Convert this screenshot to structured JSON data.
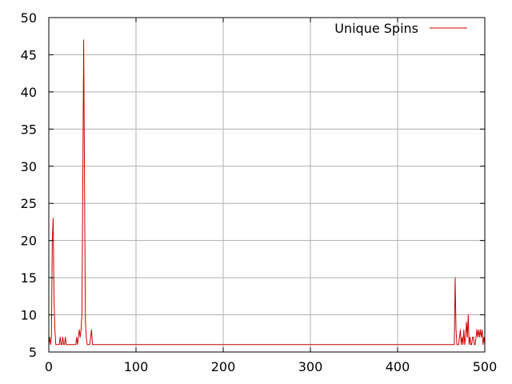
{
  "chart_data": {
    "type": "line",
    "title": "",
    "xlabel": "",
    "ylabel": "",
    "xlim": [
      0,
      500
    ],
    "ylim": [
      5,
      50
    ],
    "xticks": [
      0,
      100,
      200,
      300,
      400,
      500
    ],
    "yticks": [
      5,
      10,
      15,
      20,
      25,
      30,
      35,
      40,
      45,
      50
    ],
    "grid": true,
    "legend_position": "top-right",
    "series": [
      {
        "name": "Unique Spins",
        "color": "#cc0000",
        "x": [
          0,
          1,
          2,
          3,
          4,
          5,
          6,
          7,
          8,
          9,
          10,
          11,
          12,
          13,
          14,
          15,
          16,
          17,
          18,
          19,
          20,
          21,
          22,
          23,
          24,
          25,
          26,
          27,
          28,
          29,
          30,
          31,
          32,
          33,
          34,
          35,
          36,
          37,
          38,
          39,
          40,
          41,
          42,
          43,
          44,
          45,
          46,
          47,
          48,
          49,
          50,
          51,
          52,
          55,
          100,
          200,
          300,
          400,
          460,
          462,
          463,
          464,
          465,
          466,
          467,
          468,
          469,
          470,
          471,
          472,
          473,
          474,
          475,
          476,
          477,
          478,
          479,
          480,
          481,
          482,
          483,
          484,
          485,
          486,
          487,
          488,
          489,
          490,
          491,
          492,
          493,
          494,
          495,
          496,
          497,
          498,
          499,
          500
        ],
        "y": [
          6,
          7,
          6,
          7,
          20,
          23,
          12,
          8,
          6,
          6,
          6,
          6,
          6,
          7,
          6,
          6,
          7,
          6,
          6,
          7,
          6,
          6,
          6,
          6,
          6,
          6,
          6,
          6,
          6,
          6,
          6,
          6,
          7,
          6,
          7,
          8,
          7,
          8,
          10,
          28,
          47,
          27,
          9,
          7,
          6,
          6,
          6,
          6,
          7,
          8,
          6,
          6,
          6,
          6,
          6,
          6,
          6,
          6,
          6,
          6,
          6,
          6,
          6,
          15,
          8,
          6,
          6,
          6,
          7,
          8,
          6,
          7,
          6,
          8,
          6,
          7,
          9,
          7,
          10,
          6,
          7,
          6,
          6,
          7,
          7,
          6,
          6,
          7,
          8,
          7,
          8,
          7,
          8,
          7,
          8,
          6,
          7,
          6
        ]
      }
    ]
  }
}
